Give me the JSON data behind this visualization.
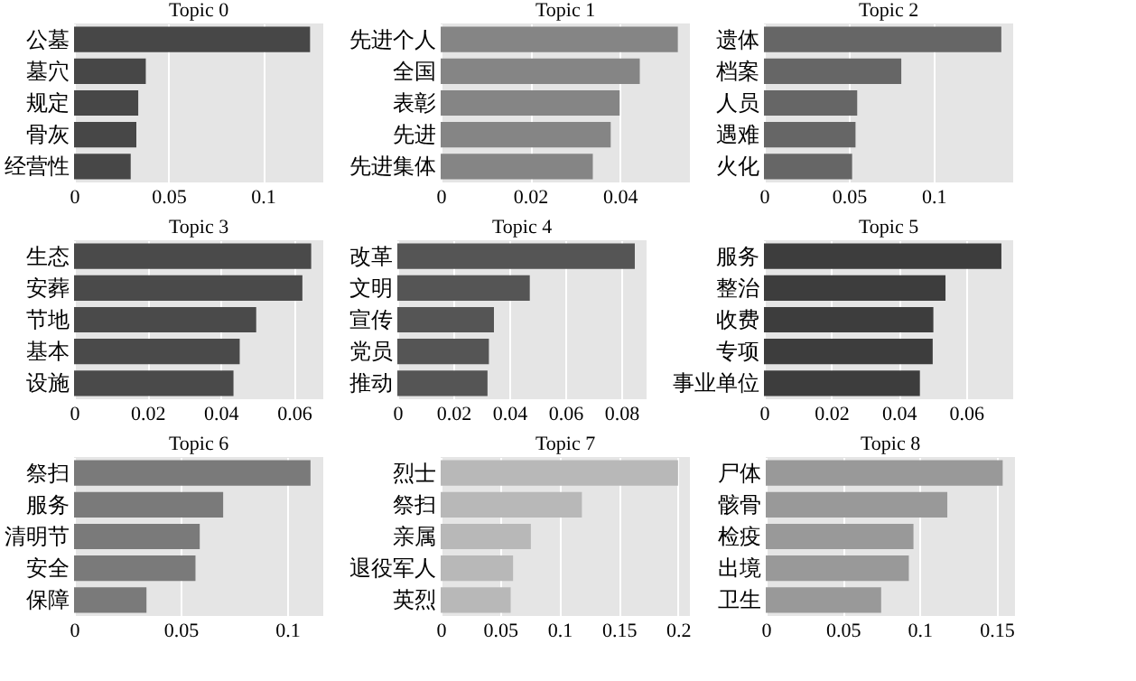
{
  "chart_data": [
    {
      "type": "bar",
      "orientation": "horizontal",
      "title": "Topic 0",
      "categories": [
        "公墓",
        "墓穴",
        "规定",
        "骨灰",
        "经营性"
      ],
      "values": [
        0.125,
        0.038,
        0.034,
        0.033,
        0.03
      ],
      "color": "#474747",
      "xlim": [
        0,
        0.132
      ],
      "xticks": [
        0,
        0.05,
        0.1
      ],
      "grid": "x"
    },
    {
      "type": "bar",
      "orientation": "horizontal",
      "title": "Topic 1",
      "categories": [
        "先进个人",
        "全国",
        "表彰",
        "先进",
        "先进集体"
      ],
      "values": [
        0.053,
        0.0445,
        0.04,
        0.038,
        0.034
      ],
      "color": "#858585",
      "xlim": [
        0,
        0.0557
      ],
      "xticks": [
        0,
        0.02,
        0.04
      ],
      "grid": "x"
    },
    {
      "type": "bar",
      "orientation": "horizontal",
      "title": "Topic 2",
      "categories": [
        "遗体",
        "档案",
        "人员",
        "遇难",
        "火化"
      ],
      "values": [
        0.14,
        0.081,
        0.055,
        0.054,
        0.052
      ],
      "color": "#666666",
      "xlim": [
        0,
        0.147
      ],
      "xticks": [
        0,
        0.05,
        0.1
      ],
      "grid": "x"
    },
    {
      "type": "bar",
      "orientation": "horizontal",
      "title": "Topic 3",
      "categories": [
        "生态",
        "安葬",
        "节地",
        "基本",
        "设施"
      ],
      "values": [
        0.0647,
        0.0623,
        0.0497,
        0.0452,
        0.0435
      ],
      "color": "#4a4a4a",
      "xlim": [
        0,
        0.068
      ],
      "xticks": [
        0,
        0.02,
        0.04,
        0.06
      ],
      "grid": "x"
    },
    {
      "type": "bar",
      "orientation": "horizontal",
      "title": "Topic 4",
      "categories": [
        "改革",
        "文明",
        "宣传",
        "党员",
        "推动"
      ],
      "values": [
        0.0848,
        0.0473,
        0.0345,
        0.0327,
        0.0322
      ],
      "color": "#555555",
      "xlim": [
        0,
        0.089
      ],
      "xticks": [
        0,
        0.02,
        0.04,
        0.06,
        0.08
      ],
      "grid": "x"
    },
    {
      "type": "bar",
      "orientation": "horizontal",
      "title": "Topic 5",
      "categories": [
        "服务",
        "整治",
        "收费",
        "专项",
        "事业单位"
      ],
      "values": [
        0.0705,
        0.0539,
        0.0503,
        0.0501,
        0.0463
      ],
      "color": "#3d3d3d",
      "xlim": [
        0,
        0.074
      ],
      "xticks": [
        0,
        0.02,
        0.04,
        0.06
      ],
      "grid": "x"
    },
    {
      "type": "bar",
      "orientation": "horizontal",
      "title": "Topic 6",
      "categories": [
        "祭扫",
        "服务",
        "清明节",
        "安全",
        "保障"
      ],
      "values": [
        0.111,
        0.07,
        0.059,
        0.057,
        0.034
      ],
      "color": "#7a7a7a",
      "xlim": [
        0,
        0.117
      ],
      "xticks": [
        0,
        0.05,
        0.1
      ],
      "grid": "x"
    },
    {
      "type": "bar",
      "orientation": "horizontal",
      "title": "Topic 7",
      "categories": [
        "烈士",
        "祭扫",
        "亲属",
        "退役军人",
        "英烈"
      ],
      "values": [
        0.2,
        0.119,
        0.076,
        0.061,
        0.059
      ],
      "color": "#b8b8b8",
      "xlim": [
        0,
        0.21
      ],
      "xticks": [
        0,
        0.05,
        0.1,
        0.15,
        0.2
      ],
      "grid": "x"
    },
    {
      "type": "bar",
      "orientation": "horizontal",
      "title": "Topic 8",
      "categories": [
        "尸体",
        "骸骨",
        "检疫",
        "出境",
        "卫生"
      ],
      "values": [
        0.154,
        0.118,
        0.096,
        0.093,
        0.075
      ],
      "color": "#999999",
      "xlim": [
        0,
        0.162
      ],
      "xticks": [
        0,
        0.05,
        0.1,
        0.15
      ],
      "grid": "x"
    }
  ]
}
